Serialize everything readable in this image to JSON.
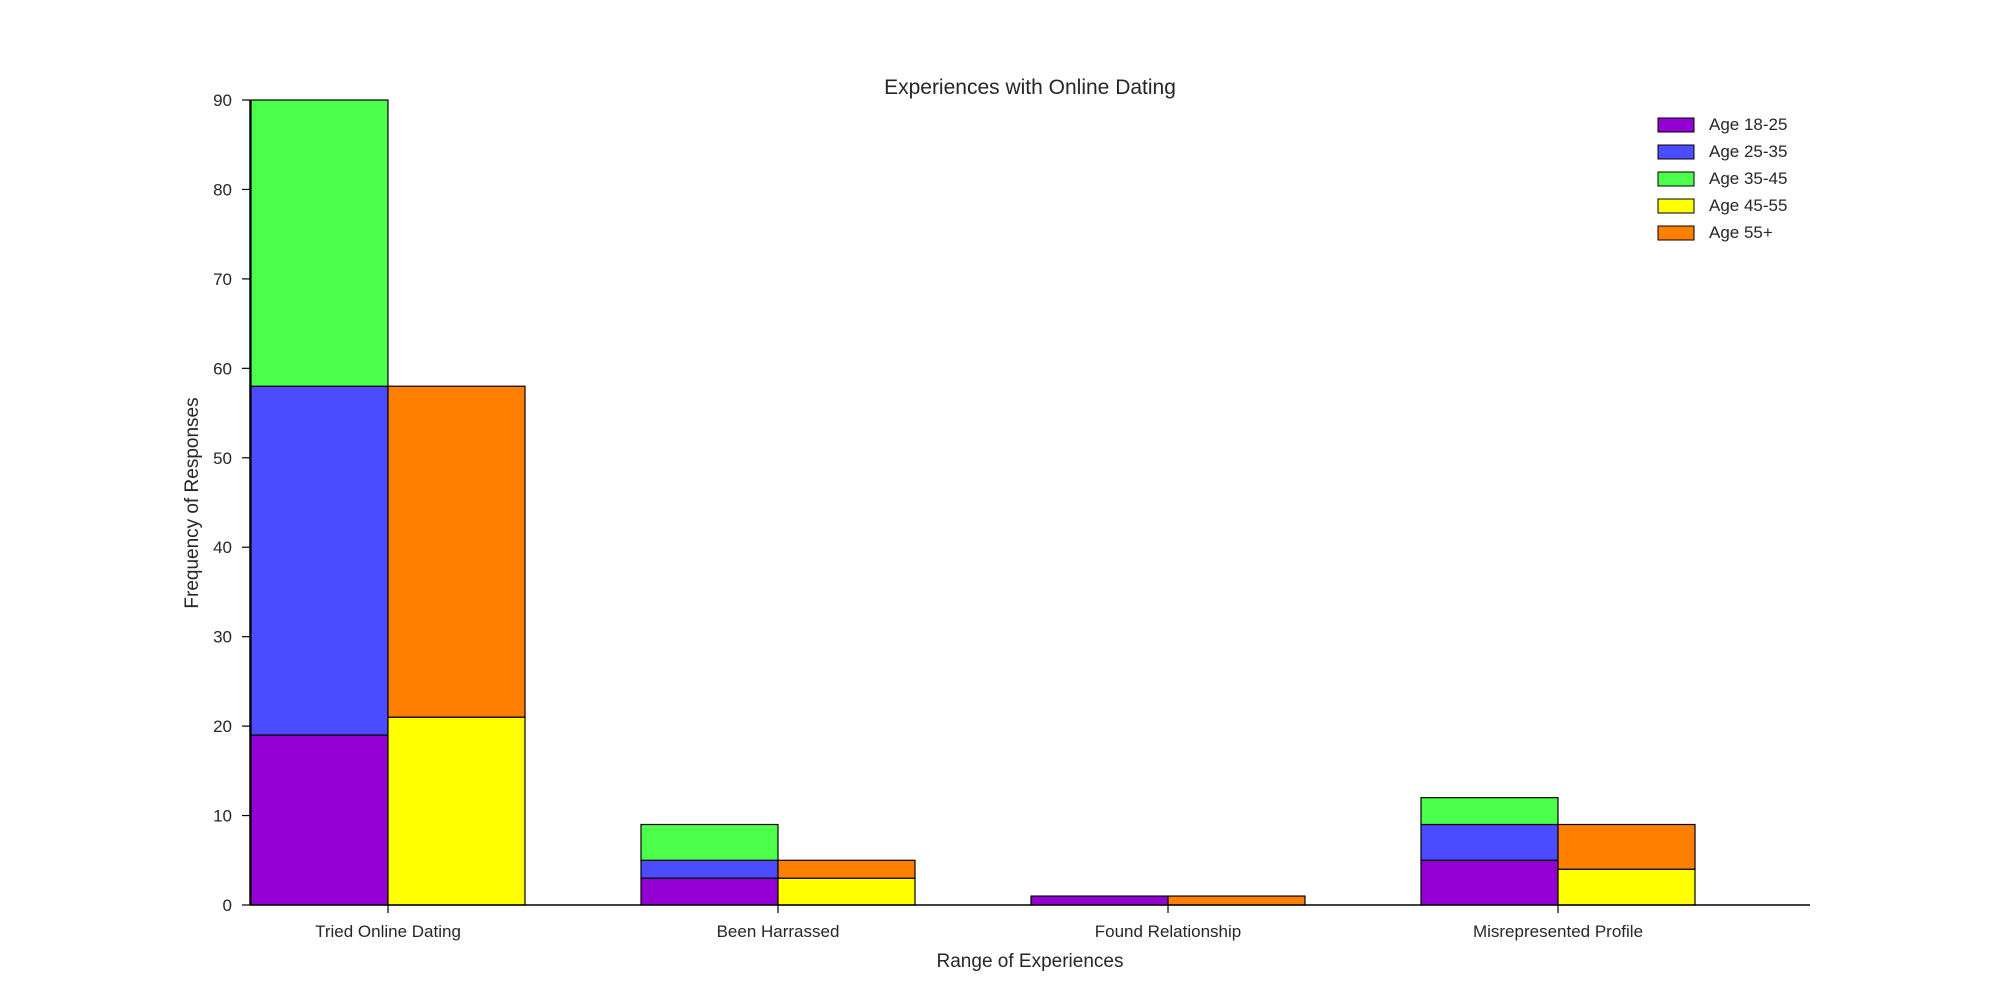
{
  "chart_data": {
    "type": "bar",
    "subtype": "grouped-stacked",
    "title": "Experiences with Online Dating",
    "xlabel": "Range of Experiences",
    "ylabel": "Frequency of Responses",
    "ylim": [
      0,
      90
    ],
    "yticks": [
      0,
      10,
      20,
      30,
      40,
      50,
      60,
      70,
      80,
      90
    ],
    "categories": [
      "Tried Online Dating",
      "Been Harrassed",
      "Found Relationship",
      "Misrepresented Profile"
    ],
    "grid": false,
    "legend_position": "top-right",
    "groups": [
      {
        "stack": "left",
        "series": [
          "Age 18-25",
          "Age 25-35",
          "Age 35-45"
        ]
      },
      {
        "stack": "right",
        "series": [
          "Age 45-55",
          "Age 55+"
        ]
      }
    ],
    "series": [
      {
        "name": "Age 18-25",
        "color": "#9400D3",
        "values": [
          19,
          3,
          1,
          5
        ]
      },
      {
        "name": "Age 25-35",
        "color": "#4B4BFF",
        "values": [
          39,
          2,
          0,
          4
        ]
      },
      {
        "name": "Age 35-45",
        "color": "#4BFF4B",
        "values": [
          32,
          4,
          0,
          3
        ]
      },
      {
        "name": "Age 45-55",
        "color": "#FFFF00",
        "values": [
          21,
          3,
          0,
          4
        ]
      },
      {
        "name": "Age 55+",
        "color": "#FF7F00",
        "values": [
          37,
          2,
          1,
          5
        ]
      }
    ]
  }
}
